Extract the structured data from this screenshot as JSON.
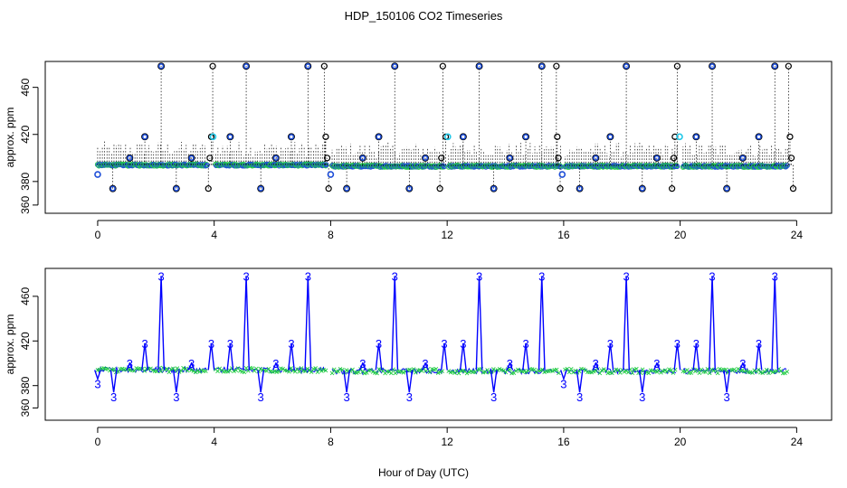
{
  "title": "HDP_150106  CO2 Timeseries",
  "xlabel": "Hour of Day (UTC)",
  "chart_data": [
    {
      "type": "scatter",
      "panel": "top",
      "ylabel": "approx. ppm",
      "xlim": [
        -1.8,
        25.2
      ],
      "ylim": [
        353,
        482
      ],
      "xticks": [
        0,
        4,
        8,
        12,
        16,
        20,
        24
      ],
      "yticks": [
        360,
        380,
        420,
        460
      ],
      "ytick_labels": [
        "360",
        "380",
        "420",
        "460"
      ],
      "grid": false,
      "colors": {
        "main": "#1f4fd8",
        "noise": "#22cc44",
        "open": "#000000",
        "cyan": "#22c8e8"
      },
      "baseline_segments": [
        {
          "x": [
            0.0,
            3.75
          ],
          "y": 394
        },
        {
          "x": [
            4.05,
            7.85
          ],
          "y": 394
        },
        {
          "x": [
            8.05,
            11.9
          ],
          "y": 393
        },
        {
          "x": [
            12.05,
            15.9
          ],
          "y": 393
        },
        {
          "x": [
            16.05,
            19.9
          ],
          "y": 393
        },
        {
          "x": [
            20.1,
            23.7
          ],
          "y": 393
        }
      ],
      "cycle_points_x": [
        0.52,
        1.1,
        1.62,
        2.18,
        2.7,
        3.22,
        4.55,
        5.1,
        5.6,
        6.12,
        6.65,
        7.22,
        8.55,
        9.1,
        9.65,
        10.2,
        10.7,
        11.25,
        12.55,
        13.1,
        13.6,
        14.15,
        14.7,
        15.25,
        16.55,
        17.1,
        17.6,
        18.15,
        18.7,
        19.2,
        20.55,
        21.1,
        21.6,
        22.15,
        22.7,
        23.25
      ],
      "cycle_points_y": [
        374,
        400,
        418,
        478,
        374,
        400,
        418,
        478,
        374,
        400,
        418,
        478,
        374,
        400,
        418,
        478,
        374,
        400,
        418,
        478,
        374,
        400,
        418,
        478,
        374,
        400,
        418,
        478,
        374,
        400,
        418,
        478,
        374,
        400,
        418,
        478
      ],
      "open_points_x": [
        3.8,
        3.85,
        3.9,
        3.95,
        7.78,
        7.83,
        7.88,
        7.93,
        11.75,
        11.8,
        11.85,
        11.95,
        15.75,
        15.78,
        15.82,
        15.88,
        19.72,
        19.78,
        19.82,
        19.9,
        23.72,
        23.77,
        23.82,
        23.88
      ],
      "open_points_y": [
        374,
        400,
        418,
        478,
        478,
        418,
        400,
        374,
        374,
        400,
        478,
        418,
        478,
        418,
        400,
        374,
        374,
        400,
        418,
        478,
        478,
        418,
        400,
        374
      ],
      "cyan_points_x": [
        3.96,
        12.02,
        19.98
      ],
      "cyan_points_y": [
        418,
        418,
        418
      ],
      "extra_points_x": [
        0.0,
        8.0,
        15.95
      ],
      "extra_points_y": [
        386,
        386,
        386
      ]
    },
    {
      "type": "line",
      "panel": "bottom",
      "ylabel": "approx. ppm",
      "xlim": [
        -1.8,
        25.2
      ],
      "ylim": [
        349,
        485
      ],
      "xticks": [
        0,
        4,
        8,
        12,
        16,
        20,
        24
      ],
      "yticks": [
        360,
        380,
        420,
        460
      ],
      "ytick_labels": [
        "360",
        "380",
        "420",
        "460"
      ],
      "grid": false,
      "marker_label": "3",
      "colors": {
        "line": "#0000ff",
        "noise": "#22cc44"
      },
      "baseline_segments": [
        {
          "x": [
            0.0,
            3.75
          ],
          "y": 394
        },
        {
          "x": [
            4.05,
            7.85
          ],
          "y": 394
        },
        {
          "x": [
            8.05,
            11.9
          ],
          "y": 393
        },
        {
          "x": [
            12.05,
            15.9
          ],
          "y": 393
        },
        {
          "x": [
            16.05,
            19.9
          ],
          "y": 393
        },
        {
          "x": [
            20.1,
            23.7
          ],
          "y": 393
        }
      ],
      "spikes_x": [
        0.0,
        0.55,
        1.1,
        1.62,
        2.18,
        2.7,
        3.22,
        3.9,
        4.55,
        5.1,
        5.6,
        6.12,
        6.65,
        7.22,
        8.55,
        9.1,
        9.65,
        10.2,
        10.7,
        11.25,
        11.9,
        12.55,
        13.1,
        13.6,
        14.15,
        14.7,
        15.25,
        16.0,
        16.55,
        17.1,
        17.6,
        18.15,
        18.7,
        19.2,
        19.9,
        20.55,
        21.1,
        21.6,
        22.15,
        22.7,
        23.25
      ],
      "spikes_y": [
        386,
        374,
        400,
        418,
        478,
        374,
        400,
        418,
        418,
        478,
        374,
        400,
        418,
        478,
        374,
        400,
        418,
        478,
        374,
        400,
        418,
        418,
        478,
        374,
        400,
        418,
        478,
        386,
        374,
        400,
        418,
        478,
        374,
        400,
        418,
        418,
        478,
        374,
        400,
        418,
        478
      ]
    }
  ]
}
